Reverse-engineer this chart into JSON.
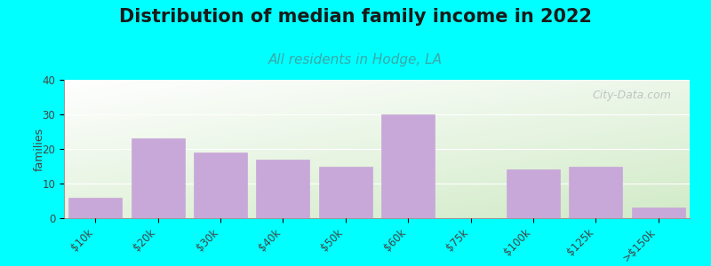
{
  "title": "Distribution of median family income in 2022",
  "subtitle": "All residents in Hodge, LA",
  "categories": [
    "$10k",
    "$20k",
    "$30k",
    "$40k",
    "$50k",
    "$60k",
    "$75k",
    "$100k",
    "$125k",
    ">$150k"
  ],
  "values": [
    6,
    23,
    19,
    17,
    15,
    30,
    0,
    14,
    15,
    3
  ],
  "bar_color": "#C8A8D8",
  "bar_edge_color": "#C8A8D8",
  "ylabel": "families",
  "ylim": [
    0,
    40
  ],
  "yticks": [
    0,
    10,
    20,
    30,
    40
  ],
  "bg_color": "#00FFFF",
  "plot_bg_top": "#F0F8F0",
  "plot_bg_bottom": "#D0E8C8",
  "title_fontsize": 15,
  "subtitle_fontsize": 11,
  "subtitle_color": "#3AAAAA",
  "watermark": "City-Data.com"
}
